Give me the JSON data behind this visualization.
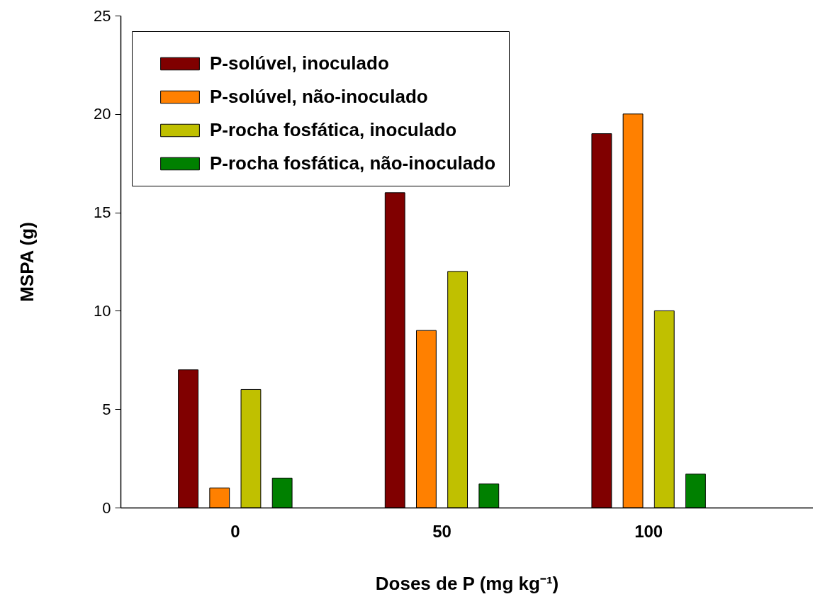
{
  "chart_data": {
    "type": "bar",
    "xlabel": "Doses de P (mg kg⁻¹)",
    "ylabel": "MSPA (g)",
    "categories": [
      "0",
      "50",
      "100"
    ],
    "series": [
      {
        "name": "P-solúvel, inoculado",
        "color": "#800000",
        "values": [
          7,
          16,
          19
        ]
      },
      {
        "name": "P-solúvel, não-inoculado",
        "color": "#ff8000",
        "values": [
          1,
          9,
          20
        ]
      },
      {
        "name": "P-rocha fosfática, inoculado",
        "color": "#c0c000",
        "values": [
          6,
          12,
          10
        ]
      },
      {
        "name": "P-rocha fosfática, não-inoculado",
        "color": "#008000",
        "values": [
          1.5,
          1.2,
          1.7
        ]
      }
    ],
    "ylim": [
      0,
      25
    ],
    "yticks": [
      0,
      5,
      10,
      15,
      20,
      25
    ],
    "grid": false,
    "legend": "top left"
  }
}
